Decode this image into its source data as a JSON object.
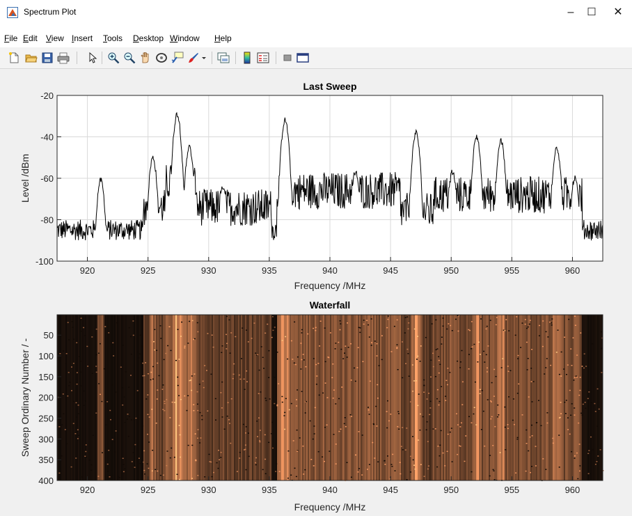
{
  "window": {
    "title": "Spectrum Plot",
    "minimize_glyph": "–",
    "maximize_glyph": "☐",
    "close_glyph": "✕"
  },
  "menu": [
    {
      "label": "File",
      "mnemonic": "F",
      "rest": "ile"
    },
    {
      "label": "Edit",
      "mnemonic": "E",
      "rest": "dit"
    },
    {
      "label": "View",
      "mnemonic": "V",
      "rest": "iew"
    },
    {
      "label": "Insert",
      "mnemonic": "I",
      "rest": "nsert"
    },
    {
      "label": "Tools",
      "mnemonic": "T",
      "rest": "ools"
    },
    {
      "label": "Desktop",
      "mnemonic": "D",
      "rest": "esktop"
    },
    {
      "label": "Window",
      "mnemonic": "W",
      "rest": "indow"
    },
    {
      "label": "Help",
      "mnemonic": "H",
      "rest": "elp"
    }
  ],
  "toolbar_icons": [
    "new-figure-icon",
    "open-file-icon",
    "save-icon",
    "print-icon",
    "edit-plot-icon",
    "zoom-in-icon",
    "zoom-out-icon",
    "pan-icon",
    "rotate-3d-icon",
    "data-cursor-icon",
    "brush-icon",
    "link-plot-icon",
    "colorbar-icon",
    "legend-icon",
    "hide-tools-icon",
    "dock-icon"
  ],
  "colors": {
    "trace": "#000000",
    "waterfall_dark": "#1a0f08",
    "waterfall_bright": "#f0a068",
    "grid": "#d9d9d9"
  },
  "chart_data": [
    {
      "type": "line",
      "title": "Last Sweep",
      "xlabel": "Frequency /MHz",
      "ylabel": "Level /dBm",
      "xlim": [
        917.5,
        962.5
      ],
      "ylim": [
        -100,
        -20
      ],
      "xticks": [
        920,
        925,
        930,
        935,
        940,
        945,
        950,
        955,
        960
      ],
      "yticks": [
        -20,
        -40,
        -60,
        -80,
        -100
      ],
      "grid": true,
      "noise_floor": -85,
      "peaks": [
        {
          "f": 921.1,
          "level": -61
        },
        {
          "f": 925.4,
          "level": -50
        },
        {
          "f": 927.4,
          "level": -29
        },
        {
          "f": 928.4,
          "level": -45
        },
        {
          "f": 931.2,
          "level": -64
        },
        {
          "f": 936.3,
          "level": -32
        },
        {
          "f": 942.1,
          "level": -57
        },
        {
          "f": 947.1,
          "level": -38
        },
        {
          "f": 950.1,
          "level": -57
        },
        {
          "f": 952.1,
          "level": -40
        },
        {
          "f": 954.1,
          "level": -42
        },
        {
          "f": 958.7,
          "level": -45
        },
        {
          "f": 960.2,
          "level": -60
        }
      ]
    },
    {
      "type": "heatmap",
      "title": "Waterfall",
      "xlabel": "Frequency /MHz",
      "ylabel": "Sweep Ordinary Number / -",
      "xlim": [
        917.5,
        962.5
      ],
      "ylim": [
        1,
        400
      ],
      "xticks": [
        920,
        925,
        930,
        935,
        940,
        945,
        950,
        955,
        960
      ],
      "yticks": [
        50,
        100,
        150,
        200,
        250,
        300,
        350,
        400
      ],
      "colormap": "copper"
    }
  ]
}
